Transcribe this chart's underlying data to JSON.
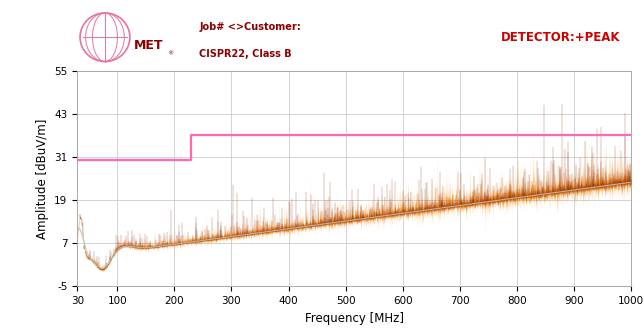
{
  "title_line1": "Job# <>Customer:",
  "title_line2": "CISPR22, Class B",
  "detector_label": "DETECTOR:+PEAK",
  "xlabel": "Frequency [MHz]",
  "ylabel": "Amplitude [dBuV/m]",
  "xlim": [
    30,
    1000
  ],
  "ylim": [
    -5,
    55
  ],
  "yticks": [
    -5,
    7,
    19,
    31,
    43,
    55
  ],
  "xticks": [
    30,
    100,
    200,
    300,
    400,
    500,
    600,
    700,
    800,
    900,
    1000
  ],
  "xtick_labels": [
    "30",
    "100",
    "200",
    "300",
    "400",
    "500",
    "600",
    "700",
    "800",
    "900",
    "1000"
  ],
  "limit_line_x": [
    30,
    230,
    230,
    1000
  ],
  "limit_line_y": [
    30,
    30,
    37,
    37
  ],
  "limit_color": "#FF69B4",
  "noise_seed": 42,
  "background_color": "#ffffff",
  "grid_color": "#cccccc",
  "orange_color": "#FF8C00",
  "dark_color": "#8B2500",
  "avg_line_color": "#c0c0c0",
  "logo_globe_color": "#E8749A",
  "logo_text_color": "#8B0000",
  "header_text_color": "#8B0000",
  "detector_text_color": "#cc0000"
}
